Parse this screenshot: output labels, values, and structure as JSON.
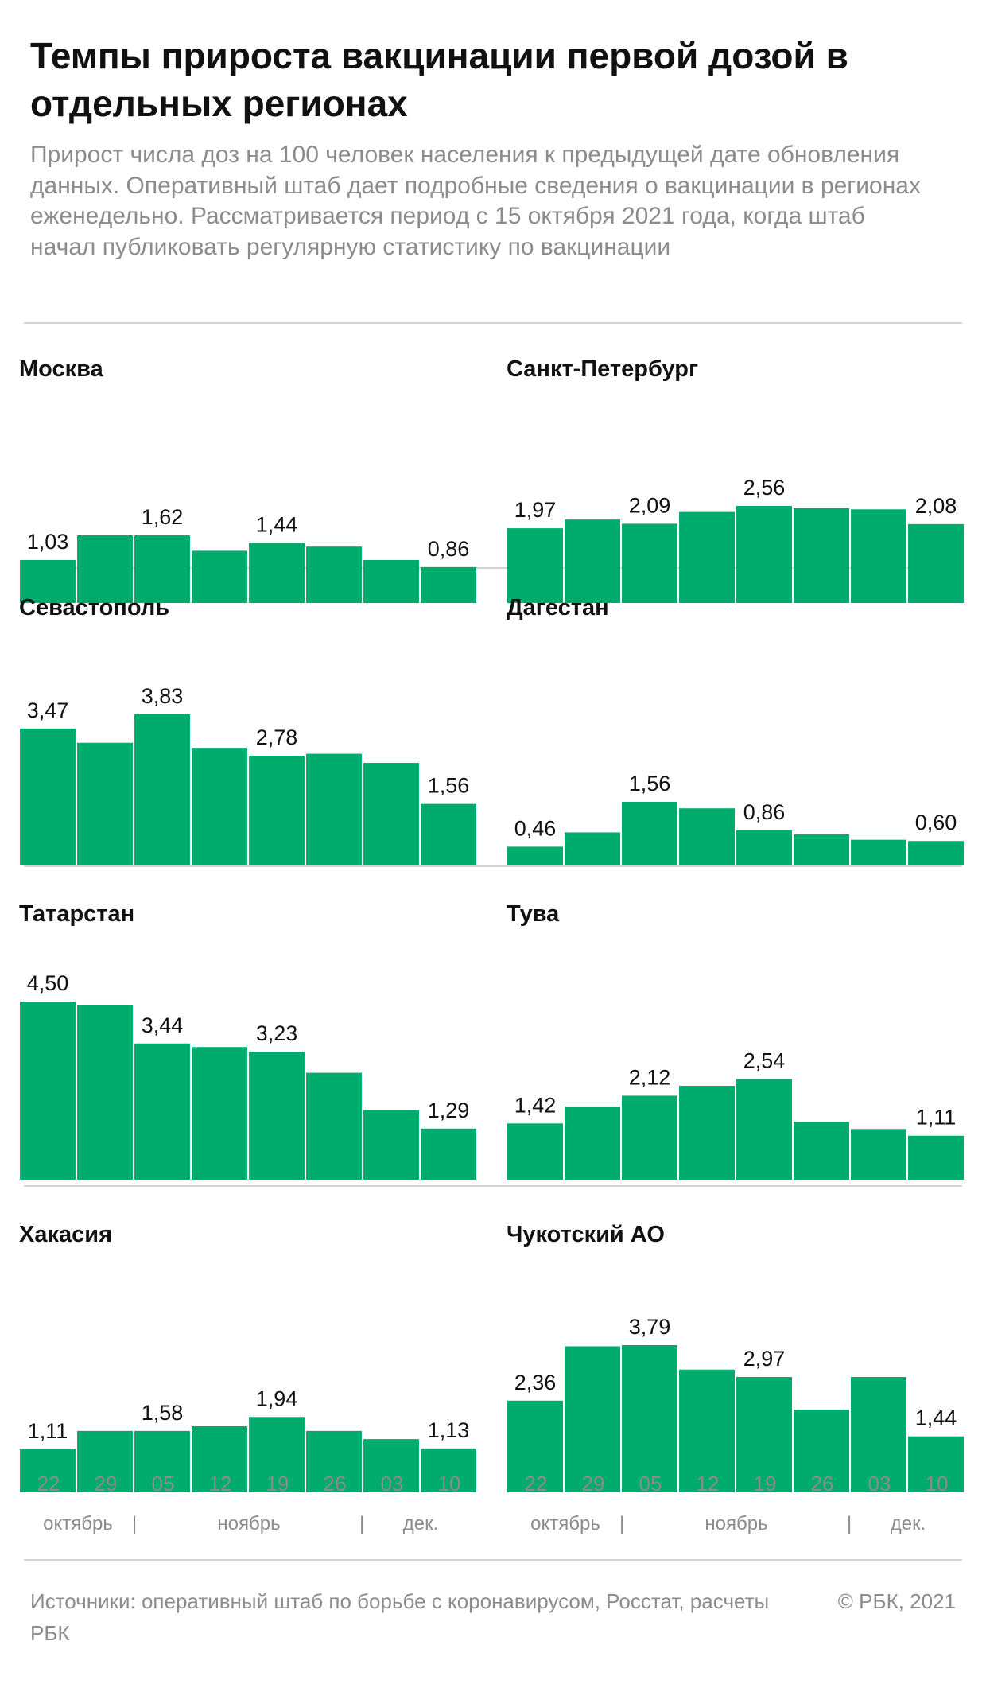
{
  "title": "Темпы прироста вакцинации первой дозой в отдельных регионах",
  "subtitle": "Прирост числа доз на 100 человек населения к предыдущей дате обновления данных. Оперативный штаб дает подробные сведения о вакцинации в регионах еженедельно. Рассматривается период с 15 октября 2021 года, когда штаб начал публиковать регулярную статистику по вакцинации",
  "colors": {
    "bar": "#00ab6e",
    "title": "#111111",
    "muted": "#8c8c8c",
    "rule": "#d4d4d4"
  },
  "x_axis": {
    "ticks": [
      "22",
      "29",
      "05",
      "12",
      "19",
      "26",
      "03",
      "10"
    ],
    "months": [
      "октябрь",
      "ноябрь",
      "дек."
    ],
    "separator": "|"
  },
  "chart_data": [
    {
      "type": "bar",
      "title": "Москва",
      "categories": [
        "22",
        "29",
        "05",
        "12",
        "19",
        "26",
        "03",
        "10"
      ],
      "values": [
        1.03,
        1.62,
        1.62,
        1.25,
        1.44,
        1.35,
        1.03,
        0.86
      ],
      "labels": [
        "1,03",
        "",
        "1,62",
        "",
        "1,44",
        "",
        "",
        "0,86"
      ]
    },
    {
      "type": "bar",
      "title": "Санкт-Петербург",
      "categories": [
        "22",
        "29",
        "05",
        "12",
        "19",
        "26",
        "03",
        "10"
      ],
      "values": [
        1.97,
        2.2,
        2.09,
        2.4,
        2.56,
        2.5,
        2.47,
        2.08
      ],
      "labels": [
        "1,97",
        "",
        "2,09",
        "",
        "2,56",
        "",
        "",
        "2,08"
      ]
    },
    {
      "type": "bar",
      "title": "Севастополь",
      "categories": [
        "22",
        "29",
        "05",
        "12",
        "19",
        "26",
        "03",
        "10"
      ],
      "values": [
        3.47,
        3.11,
        3.83,
        2.98,
        2.78,
        2.83,
        2.6,
        1.56
      ],
      "labels": [
        "3,47",
        "",
        "3,83",
        "",
        "2,78",
        "",
        "",
        "1,56"
      ]
    },
    {
      "type": "bar",
      "title": "Дагестан",
      "categories": [
        "22",
        "29",
        "05",
        "12",
        "19",
        "26",
        "03",
        "10"
      ],
      "values": [
        0.46,
        0.81,
        1.56,
        1.4,
        0.86,
        0.76,
        0.63,
        0.6
      ],
      "labels": [
        "0,46",
        "",
        "1,56",
        "",
        "0,86",
        "",
        "",
        "0,60"
      ]
    },
    {
      "type": "bar",
      "title": "Татарстан",
      "categories": [
        "22",
        "29",
        "05",
        "12",
        "19",
        "26",
        "03",
        "10"
      ],
      "values": [
        4.5,
        4.4,
        3.44,
        3.35,
        3.23,
        2.7,
        1.75,
        1.29
      ],
      "labels": [
        "4,50",
        "",
        "3,44",
        "",
        "3,23",
        "",
        "",
        "1,29"
      ]
    },
    {
      "type": "bar",
      "title": "Тува",
      "categories": [
        "22",
        "29",
        "05",
        "12",
        "19",
        "26",
        "03",
        "10"
      ],
      "values": [
        1.42,
        1.85,
        2.12,
        2.37,
        2.54,
        1.46,
        1.28,
        1.11
      ],
      "labels": [
        "1,42",
        "",
        "2,12",
        "",
        "2,54",
        "",
        "",
        "1,11"
      ]
    },
    {
      "type": "bar",
      "title": "Хакасия",
      "categories": [
        "22",
        "29",
        "05",
        "12",
        "19",
        "26",
        "03",
        "10"
      ],
      "values": [
        1.11,
        1.58,
        1.58,
        1.7,
        1.94,
        1.58,
        1.37,
        1.13
      ],
      "labels": [
        "1,11",
        "",
        "1,58",
        "",
        "1,94",
        "",
        "",
        "1,13"
      ]
    },
    {
      "type": "bar",
      "title": "Чукотский АО",
      "categories": [
        "22",
        "29",
        "05",
        "12",
        "19",
        "26",
        "03",
        "10"
      ],
      "values": [
        2.36,
        3.76,
        3.79,
        3.16,
        2.97,
        2.13,
        2.97,
        1.44
      ],
      "labels": [
        "2,36",
        "",
        "3,79",
        "",
        "2,97",
        "",
        "",
        "1,44"
      ]
    }
  ],
  "footer": {
    "sources": "Источники: оперативный штаб по борьбе с коронавирусом, Росстат, расчеты РБК",
    "copyright": "© РБК, 2021"
  }
}
